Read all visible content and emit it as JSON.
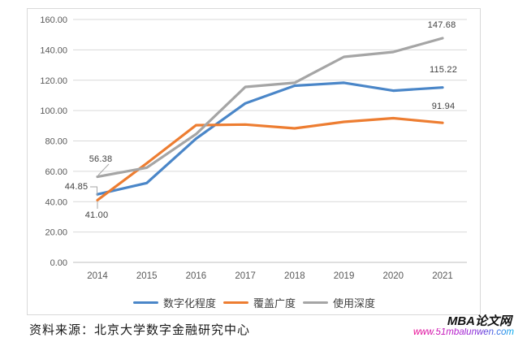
{
  "chart_data": {
    "type": "line",
    "title": "",
    "categories": [
      "2014",
      "2015",
      "2016",
      "2017",
      "2018",
      "2019",
      "2020",
      "2021"
    ],
    "series": [
      {
        "name": "数字化程度",
        "color": "#4A86C8",
        "values": [
          44.85,
          52.3,
          81.5,
          104.8,
          116.4,
          118.3,
          113.1,
          115.22
        ]
      },
      {
        "name": "覆盖广度",
        "color": "#ED7D31",
        "values": [
          41.0,
          65.3,
          90.4,
          90.8,
          88.3,
          92.6,
          95.0,
          91.94
        ]
      },
      {
        "name": "使用深度",
        "color": "#A5A5A5",
        "values": [
          56.38,
          62.4,
          84.5,
          115.6,
          118.3,
          135.4,
          138.6,
          147.68
        ]
      }
    ],
    "ylim": [
      0,
      160
    ],
    "y_ticks": [
      "0.00",
      "20.00",
      "40.00",
      "60.00",
      "80.00",
      "100.00",
      "120.00",
      "140.00",
      "160.00"
    ],
    "grid": "horizontal-on",
    "legend_position": "bottom",
    "point_labels": [
      {
        "series": "使用深度",
        "category": "2014",
        "text": "56.38"
      },
      {
        "series": "数字化程度",
        "category": "2014",
        "text": "44.85"
      },
      {
        "series": "覆盖广度",
        "category": "2014",
        "text": "41.00"
      },
      {
        "series": "使用深度",
        "category": "2021",
        "text": "147.68"
      },
      {
        "series": "数字化程度",
        "category": "2021",
        "text": "115.22"
      },
      {
        "series": "覆盖广度",
        "category": "2021",
        "text": "91.94"
      }
    ],
    "axis_colors": {
      "gridline": "#d9d9d9",
      "axis_line": "#bfbfbf",
      "tick_text": "#595959"
    }
  },
  "footer": {
    "source": "资料来源：北京大学数字金融研究中心"
  },
  "watermark": {
    "title": "MBA论文网",
    "url": "www.51mbalunwen.com"
  }
}
